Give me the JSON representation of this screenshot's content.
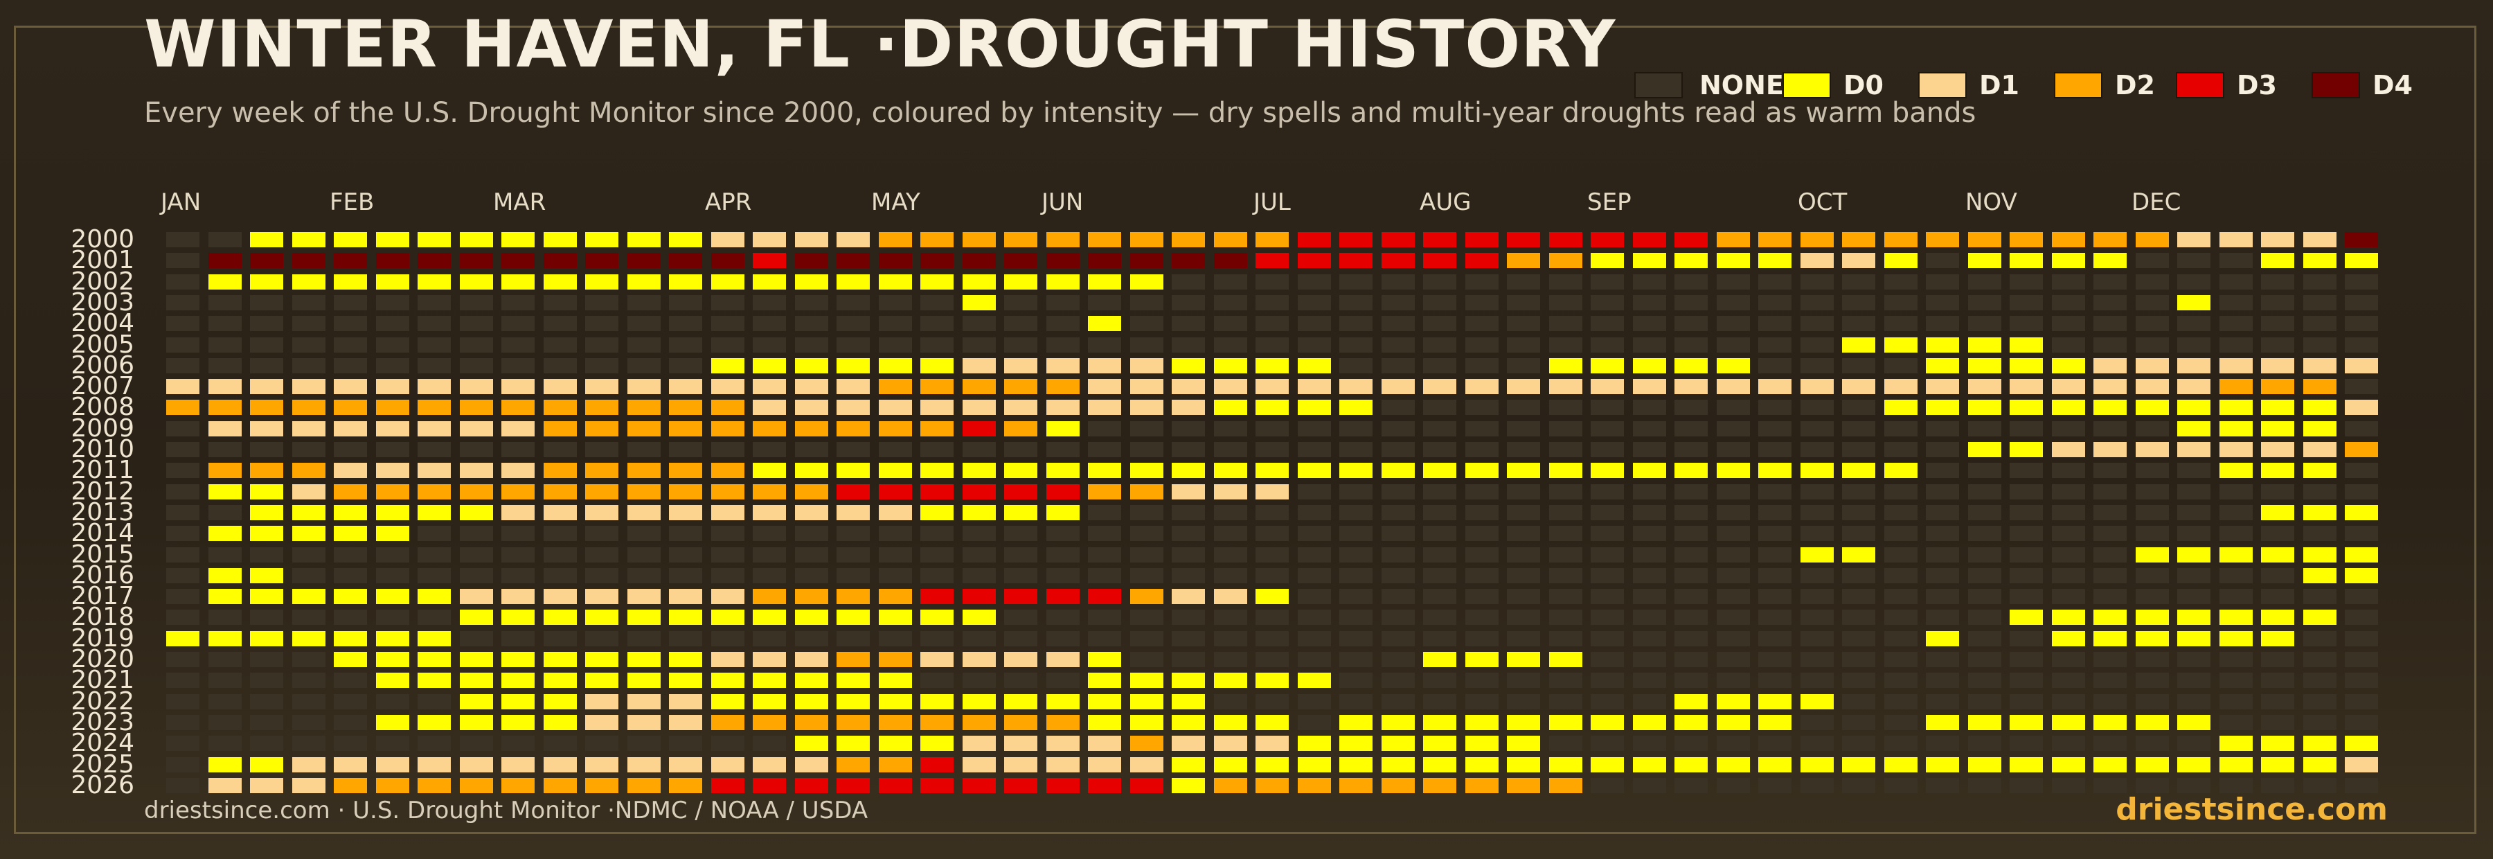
{
  "title": "WINTER HAVEN, FL ·DROUGHT HISTORY",
  "subtitle": "Every week of the U.S. Drought Monitor since 2000, coloured by intensity — dry spells and multi-year droughts read as warm bands",
  "footer_source": "driestsince.com  · U.S. Drought Monitor ·NDMC / NOAA / USDA",
  "footer_brand": "driestsince.com",
  "colors": {
    "NONE": "#3a3224",
    "D0": "#ffff00",
    "D1": "#fcd38f",
    "D2": "#ffa600",
    "D3": "#e60000",
    "D4": "#730000"
  },
  "legend": [
    {
      "key": "NONE",
      "label": "NONE"
    },
    {
      "key": "D0",
      "label": "D0"
    },
    {
      "key": "D1",
      "label": "D1"
    },
    {
      "key": "D2",
      "label": "D2"
    },
    {
      "key": "D3",
      "label": "D3"
    },
    {
      "key": "D4",
      "label": "D4"
    }
  ],
  "chart_data": {
    "type": "heatmap",
    "x_months": [
      "JAN",
      "FEB",
      "MAR",
      "APR",
      "MAY",
      "JUN",
      "JUL",
      "AUG",
      "SEP",
      "OCT",
      "NOV",
      "DEC"
    ],
    "weeks_per_year": 53,
    "years": [
      "2000",
      "2001",
      "2002",
      "2003",
      "2004",
      "2005",
      "2006",
      "2007",
      "2008",
      "2009",
      "2010",
      "2011",
      "2012",
      "2013",
      "2014",
      "2015",
      "2016",
      "2017",
      "2018",
      "2019",
      "2020",
      "2021",
      "2022",
      "2023",
      "2024",
      "2025",
      "2026"
    ],
    "categories": [
      "NONE",
      "D0",
      "D1",
      "D2",
      "D3",
      "D4"
    ],
    "weeks": [
      [
        0,
        0,
        1,
        1,
        1,
        1,
        1,
        1,
        1,
        1,
        1,
        1,
        1,
        2,
        2,
        2,
        2,
        3,
        3,
        3,
        3,
        3,
        3,
        3,
        3,
        3,
        3,
        4,
        4,
        4,
        4,
        4,
        4,
        4,
        4,
        4,
        4,
        3,
        3,
        3,
        3,
        3,
        3,
        3,
        3,
        3,
        3,
        3,
        2,
        2,
        2,
        2,
        5
      ],
      [
        0,
        5,
        5,
        5,
        5,
        5,
        5,
        5,
        5,
        5,
        5,
        5,
        5,
        5,
        4,
        5,
        5,
        5,
        5,
        5,
        5,
        5,
        5,
        5,
        5,
        5,
        4,
        4,
        4,
        4,
        4,
        4,
        3,
        3,
        1,
        1,
        1,
        1,
        1,
        2,
        2,
        1,
        0,
        1,
        1,
        1,
        1,
        0,
        0,
        0,
        1,
        1,
        1
      ],
      [
        0,
        1,
        1,
        1,
        1,
        1,
        1,
        1,
        1,
        1,
        1,
        1,
        1,
        1,
        1,
        1,
        1,
        1,
        1,
        1,
        1,
        1,
        1,
        1,
        0,
        0,
        0,
        0,
        0,
        0,
        0,
        0,
        0,
        0,
        0,
        0,
        0,
        0,
        0,
        0,
        0,
        0,
        0,
        0,
        0,
        0,
        0,
        0,
        0,
        0,
        0,
        0,
        0
      ],
      [
        0,
        0,
        0,
        0,
        0,
        0,
        0,
        0,
        0,
        0,
        0,
        0,
        0,
        0,
        0,
        0,
        0,
        0,
        0,
        1,
        0,
        0,
        0,
        0,
        0,
        0,
        0,
        0,
        0,
        0,
        0,
        0,
        0,
        0,
        0,
        0,
        0,
        0,
        0,
        0,
        0,
        0,
        0,
        0,
        0,
        0,
        0,
        0,
        1,
        0,
        0,
        0,
        0
      ],
      [
        0,
        0,
        0,
        0,
        0,
        0,
        0,
        0,
        0,
        0,
        0,
        0,
        0,
        0,
        0,
        0,
        0,
        0,
        0,
        0,
        0,
        0,
        1,
        0,
        0,
        0,
        0,
        0,
        0,
        0,
        0,
        0,
        0,
        0,
        0,
        0,
        0,
        0,
        0,
        0,
        0,
        0,
        0,
        0,
        0,
        0,
        0,
        0,
        0,
        0,
        0,
        0,
        0
      ],
      [
        0,
        0,
        0,
        0,
        0,
        0,
        0,
        0,
        0,
        0,
        0,
        0,
        0,
        0,
        0,
        0,
        0,
        0,
        0,
        0,
        0,
        0,
        0,
        0,
        0,
        0,
        0,
        0,
        0,
        0,
        0,
        0,
        0,
        0,
        0,
        0,
        0,
        0,
        0,
        0,
        1,
        1,
        1,
        1,
        1,
        0,
        0,
        0,
        0,
        0,
        0,
        0,
        0
      ],
      [
        0,
        0,
        0,
        0,
        0,
        0,
        0,
        0,
        0,
        0,
        0,
        0,
        0,
        1,
        1,
        1,
        1,
        1,
        1,
        2,
        2,
        2,
        2,
        2,
        1,
        1,
        1,
        1,
        0,
        0,
        0,
        0,
        0,
        1,
        1,
        1,
        1,
        1,
        0,
        0,
        0,
        0,
        1,
        1,
        1,
        1,
        2,
        2,
        2,
        2,
        2,
        2,
        2
      ],
      [
        2,
        2,
        2,
        2,
        2,
        2,
        2,
        2,
        2,
        2,
        2,
        2,
        2,
        2,
        2,
        2,
        2,
        3,
        3,
        3,
        3,
        3,
        2,
        2,
        2,
        2,
        2,
        2,
        2,
        2,
        2,
        2,
        2,
        2,
        2,
        2,
        2,
        2,
        2,
        2,
        2,
        2,
        2,
        2,
        2,
        2,
        2,
        2,
        2,
        3,
        3,
        3,
        0
      ],
      [
        3,
        3,
        3,
        3,
        3,
        3,
        3,
        3,
        3,
        3,
        3,
        3,
        3,
        3,
        2,
        2,
        2,
        2,
        2,
        2,
        2,
        2,
        2,
        2,
        2,
        1,
        1,
        1,
        1,
        0,
        0,
        0,
        0,
        0,
        0,
        0,
        0,
        0,
        0,
        0,
        0,
        1,
        1,
        1,
        1,
        1,
        1,
        1,
        1,
        1,
        1,
        1,
        2
      ],
      [
        0,
        2,
        2,
        2,
        2,
        2,
        2,
        2,
        2,
        3,
        3,
        3,
        3,
        3,
        3,
        3,
        3,
        3,
        3,
        4,
        3,
        1,
        0,
        0,
        0,
        0,
        0,
        0,
        0,
        0,
        0,
        0,
        0,
        0,
        0,
        0,
        0,
        0,
        0,
        0,
        0,
        0,
        0,
        0,
        0,
        0,
        0,
        0,
        1,
        1,
        1,
        1,
        0
      ],
      [
        0,
        0,
        0,
        0,
        0,
        0,
        0,
        0,
        0,
        0,
        0,
        0,
        0,
        0,
        0,
        0,
        0,
        0,
        0,
        0,
        0,
        0,
        0,
        0,
        0,
        0,
        0,
        0,
        0,
        0,
        0,
        0,
        0,
        0,
        0,
        0,
        0,
        0,
        0,
        0,
        0,
        0,
        0,
        1,
        1,
        2,
        2,
        2,
        2,
        2,
        2,
        2,
        3
      ],
      [
        0,
        3,
        3,
        3,
        2,
        2,
        2,
        2,
        2,
        3,
        3,
        3,
        3,
        3,
        1,
        1,
        1,
        1,
        1,
        1,
        1,
        1,
        1,
        1,
        1,
        1,
        1,
        1,
        1,
        1,
        1,
        1,
        1,
        1,
        1,
        1,
        1,
        1,
        1,
        1,
        1,
        1,
        0,
        0,
        0,
        0,
        0,
        0,
        0,
        1,
        1,
        1,
        0
      ],
      [
        0,
        1,
        1,
        2,
        3,
        3,
        3,
        3,
        3,
        3,
        3,
        3,
        3,
        3,
        3,
        3,
        4,
        4,
        4,
        4,
        4,
        4,
        3,
        3,
        2,
        2,
        2,
        0,
        0,
        0,
        0,
        0,
        0,
        0,
        0,
        0,
        0,
        0,
        0,
        0,
        0,
        0,
        0,
        0,
        0,
        0,
        0,
        0,
        0,
        0,
        0,
        0,
        0
      ],
      [
        0,
        0,
        1,
        1,
        1,
        1,
        1,
        1,
        2,
        2,
        2,
        2,
        2,
        2,
        2,
        2,
        2,
        2,
        1,
        1,
        1,
        1,
        0,
        0,
        0,
        0,
        0,
        0,
        0,
        0,
        0,
        0,
        0,
        0,
        0,
        0,
        0,
        0,
        0,
        0,
        0,
        0,
        0,
        0,
        0,
        0,
        0,
        0,
        0,
        0,
        1,
        1,
        1
      ],
      [
        0,
        1,
        1,
        1,
        1,
        1,
        0,
        0,
        0,
        0,
        0,
        0,
        0,
        0,
        0,
        0,
        0,
        0,
        0,
        0,
        0,
        0,
        0,
        0,
        0,
        0,
        0,
        0,
        0,
        0,
        0,
        0,
        0,
        0,
        0,
        0,
        0,
        0,
        0,
        0,
        0,
        0,
        0,
        0,
        0,
        0,
        0,
        0,
        0,
        0,
        0,
        0,
        0
      ],
      [
        0,
        0,
        0,
        0,
        0,
        0,
        0,
        0,
        0,
        0,
        0,
        0,
        0,
        0,
        0,
        0,
        0,
        0,
        0,
        0,
        0,
        0,
        0,
        0,
        0,
        0,
        0,
        0,
        0,
        0,
        0,
        0,
        0,
        0,
        0,
        0,
        0,
        0,
        0,
        1,
        1,
        0,
        0,
        0,
        0,
        0,
        0,
        1,
        1,
        1,
        1,
        1,
        1
      ],
      [
        0,
        1,
        1,
        0,
        0,
        0,
        0,
        0,
        0,
        0,
        0,
        0,
        0,
        0,
        0,
        0,
        0,
        0,
        0,
        0,
        0,
        0,
        0,
        0,
        0,
        0,
        0,
        0,
        0,
        0,
        0,
        0,
        0,
        0,
        0,
        0,
        0,
        0,
        0,
        0,
        0,
        0,
        0,
        0,
        0,
        0,
        0,
        0,
        0,
        0,
        0,
        1,
        1
      ],
      [
        0,
        1,
        1,
        1,
        1,
        1,
        1,
        2,
        2,
        2,
        2,
        2,
        2,
        2,
        3,
        3,
        3,
        3,
        4,
        4,
        4,
        4,
        4,
        3,
        2,
        2,
        1,
        0,
        0,
        0,
        0,
        0,
        0,
        0,
        0,
        0,
        0,
        0,
        0,
        0,
        0,
        0,
        0,
        0,
        0,
        0,
        0,
        0,
        0,
        0,
        0,
        0,
        0
      ],
      [
        0,
        0,
        0,
        0,
        0,
        0,
        0,
        1,
        1,
        1,
        1,
        1,
        1,
        1,
        1,
        1,
        1,
        1,
        1,
        1,
        0,
        0,
        0,
        0,
        0,
        0,
        0,
        0,
        0,
        0,
        0,
        0,
        0,
        0,
        0,
        0,
        0,
        0,
        0,
        0,
        0,
        0,
        0,
        0,
        1,
        1,
        1,
        1,
        1,
        1,
        1,
        1,
        0
      ],
      [
        1,
        1,
        1,
        1,
        1,
        1,
        1,
        0,
        0,
        0,
        0,
        0,
        0,
        0,
        0,
        0,
        0,
        0,
        0,
        0,
        0,
        0,
        0,
        0,
        0,
        0,
        0,
        0,
        0,
        0,
        0,
        0,
        0,
        0,
        0,
        0,
        0,
        0,
        0,
        0,
        0,
        0,
        1,
        0,
        0,
        1,
        1,
        1,
        1,
        1,
        1,
        0,
        0
      ],
      [
        0,
        0,
        0,
        0,
        1,
        1,
        1,
        1,
        1,
        1,
        1,
        1,
        1,
        2,
        2,
        2,
        3,
        3,
        2,
        2,
        2,
        2,
        1,
        0,
        0,
        0,
        0,
        0,
        0,
        0,
        1,
        1,
        1,
        1,
        0,
        0,
        0,
        0,
        0,
        0,
        0,
        0,
        0,
        0,
        0,
        0,
        0,
        0,
        0,
        0,
        0,
        0,
        0
      ],
      [
        0,
        0,
        0,
        0,
        0,
        1,
        1,
        1,
        1,
        1,
        1,
        1,
        1,
        1,
        1,
        1,
        1,
        1,
        0,
        0,
        0,
        0,
        1,
        1,
        1,
        1,
        1,
        1,
        0,
        0,
        0,
        0,
        0,
        0,
        0,
        0,
        0,
        0,
        0,
        0,
        0,
        0,
        0,
        0,
        0,
        0,
        0,
        0,
        0,
        0,
        0,
        0,
        0
      ],
      [
        0,
        0,
        0,
        0,
        0,
        0,
        0,
        1,
        1,
        1,
        2,
        2,
        2,
        1,
        1,
        1,
        1,
        1,
        1,
        1,
        1,
        1,
        1,
        1,
        1,
        0,
        0,
        0,
        0,
        0,
        0,
        0,
        0,
        0,
        0,
        0,
        1,
        1,
        1,
        1,
        0,
        0,
        0,
        0,
        0,
        0,
        0,
        0,
        0,
        0,
        0,
        0,
        0
      ],
      [
        0,
        0,
        0,
        0,
        0,
        1,
        1,
        1,
        1,
        1,
        2,
        2,
        2,
        3,
        3,
        3,
        3,
        3,
        3,
        3,
        3,
        3,
        1,
        1,
        1,
        1,
        1,
        0,
        1,
        1,
        1,
        1,
        1,
        1,
        1,
        1,
        1,
        1,
        1,
        0,
        0,
        0,
        1,
        1,
        1,
        1,
        1,
        1,
        1,
        0,
        0,
        0,
        0
      ],
      [
        0,
        0,
        0,
        0,
        0,
        0,
        0,
        0,
        0,
        0,
        0,
        0,
        0,
        0,
        0,
        1,
        1,
        1,
        1,
        2,
        2,
        2,
        2,
        3,
        2,
        2,
        2,
        1,
        1,
        1,
        1,
        1,
        1,
        0,
        0,
        0,
        0,
        0,
        0,
        0,
        0,
        0,
        0,
        0,
        0,
        0,
        0,
        0,
        0,
        1,
        1,
        1,
        1
      ],
      [
        0,
        1,
        1,
        2,
        2,
        2,
        2,
        2,
        2,
        2,
        2,
        2,
        2,
        2,
        2,
        2,
        3,
        3,
        4,
        2,
        2,
        2,
        2,
        2,
        1,
        1,
        1,
        1,
        1,
        1,
        1,
        1,
        1,
        1,
        1,
        1,
        1,
        1,
        1,
        1,
        1,
        1,
        1,
        1,
        1,
        1,
        1,
        1,
        1,
        1,
        1,
        1,
        2
      ],
      [
        0,
        2,
        2,
        2,
        3,
        3,
        3,
        3,
        3,
        3,
        3,
        3,
        3,
        4,
        4,
        4,
        4,
        4,
        4,
        4,
        4,
        4,
        4,
        4,
        1,
        3,
        3,
        3,
        3,
        3,
        3,
        3,
        3,
        3,
        0,
        0,
        0,
        0,
        0,
        0,
        0,
        0,
        0,
        0,
        0,
        0,
        0,
        0,
        0,
        0,
        0,
        0,
        0
      ]
    ]
  }
}
